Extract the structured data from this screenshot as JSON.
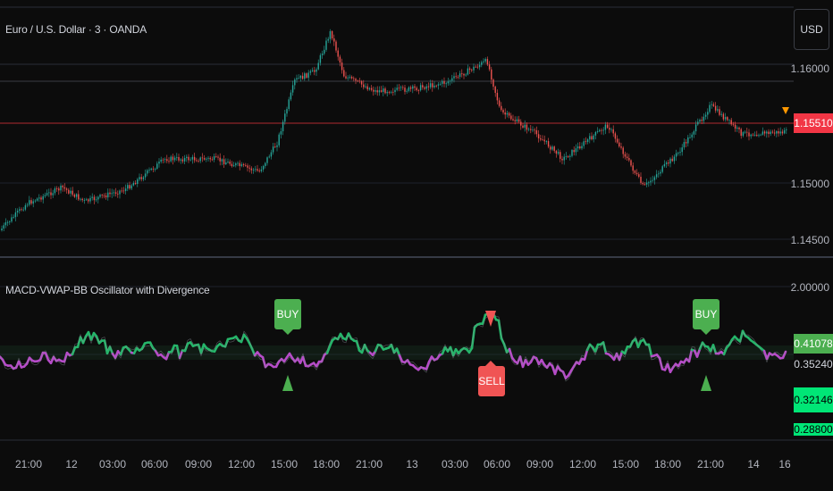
{
  "header": {
    "symbol_title": "Euro / U.S. Dollar · 3 · OANDA",
    "currency_button": "USD"
  },
  "price_axis": {
    "ticks": [
      "1.16000",
      "1.15000",
      "1.14500"
    ],
    "current_price": "1.15510",
    "current_price_color": "#f23645"
  },
  "indicator": {
    "title": "MACD-VWAP-BB Oscillator with Divergence",
    "axis_top": "2.00000",
    "values": [
      {
        "text": "0.41078",
        "color": "#4caf50"
      },
      {
        "text": "0.35240",
        "color": "#0c0c0c"
      },
      {
        "text": "0.32146",
        "color": "#00e676"
      },
      {
        "text": "0.28800",
        "color": "#00e676"
      }
    ],
    "signals": [
      {
        "text": "BUY",
        "type": "buy"
      },
      {
        "text": "SELL",
        "type": "sell"
      },
      {
        "text": "BUY",
        "type": "buy"
      }
    ]
  },
  "time_axis": {
    "labels": [
      "21:00",
      "12",
      "03:00",
      "06:00",
      "09:00",
      "12:00",
      "15:00",
      "18:00",
      "21:00",
      "13",
      "03:00",
      "06:00",
      "09:00",
      "12:00",
      "15:00",
      "18:00",
      "21:00",
      "14",
      "16"
    ]
  },
  "colors": {
    "up": "#26a69a",
    "down": "#ef5350",
    "osc_up": "#26b56a",
    "osc_down": "#b64cc8",
    "buy": "#4caf50",
    "sell": "#f05454"
  }
}
